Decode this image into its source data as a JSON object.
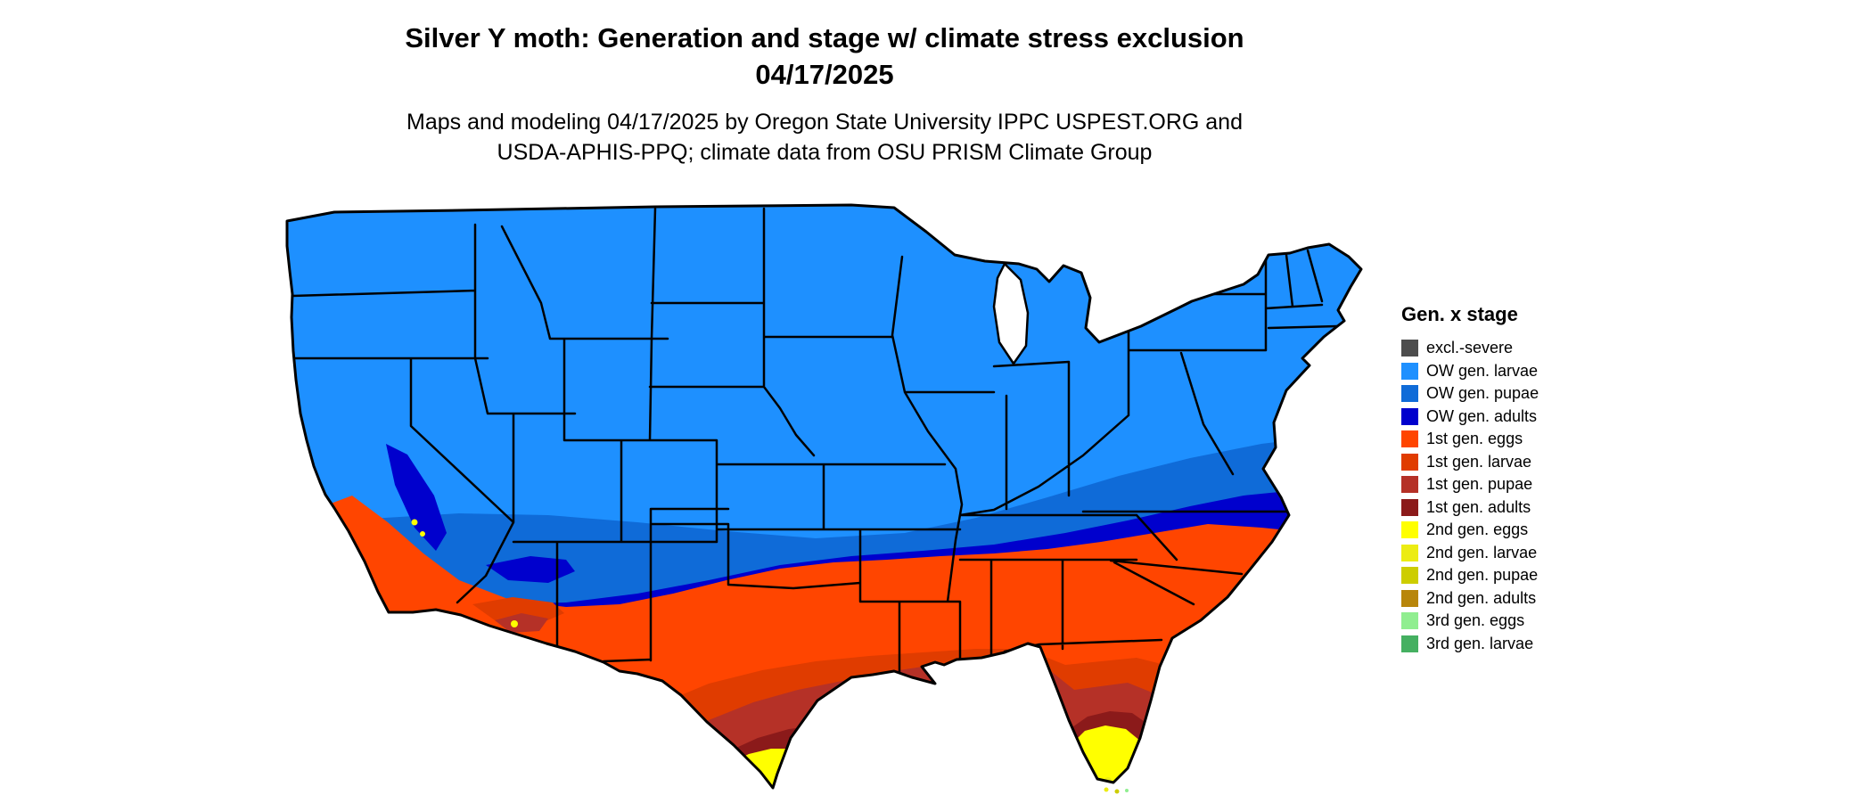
{
  "header": {
    "title_line1": "Silver Y moth: Generation and stage w/ climate stress exclusion",
    "title_line2": "04/17/2025",
    "subtitle_line1": "Maps and modeling 04/17/2025 by Oregon State University IPPC USPEST.ORG and",
    "subtitle_line2": "USDA-APHIS-PPQ; climate data from OSU PRISM Climate Group"
  },
  "legend": {
    "title": "Gen. x stage",
    "items": [
      {
        "label": "excl.-severe",
        "color": "#4d4d4d"
      },
      {
        "label": "OW gen. larvae",
        "color": "#1e90ff"
      },
      {
        "label": "OW gen. pupae",
        "color": "#0f6bd8"
      },
      {
        "label": "OW gen. adults",
        "color": "#0000cd"
      },
      {
        "label": "1st gen. eggs",
        "color": "#ff4500"
      },
      {
        "label": "1st gen. larvae",
        "color": "#e03c00"
      },
      {
        "label": "1st gen. pupae",
        "color": "#b53127"
      },
      {
        "label": "1st gen. adults",
        "color": "#8b1a1a"
      },
      {
        "label": "2nd gen. eggs",
        "color": "#ffff00"
      },
      {
        "label": "2nd gen. larvae",
        "color": "#ecec13"
      },
      {
        "label": "2nd gen. pupae",
        "color": "#cdcd00"
      },
      {
        "label": "2nd gen. adults",
        "color": "#b8860b"
      },
      {
        "label": "3rd gen. eggs",
        "color": "#90ee90"
      },
      {
        "label": "3rd gen. larvae",
        "color": "#45b061"
      }
    ]
  },
  "map": {
    "outline_color": "#000000",
    "water_color": "#ffffff",
    "background": "#ffffff"
  }
}
